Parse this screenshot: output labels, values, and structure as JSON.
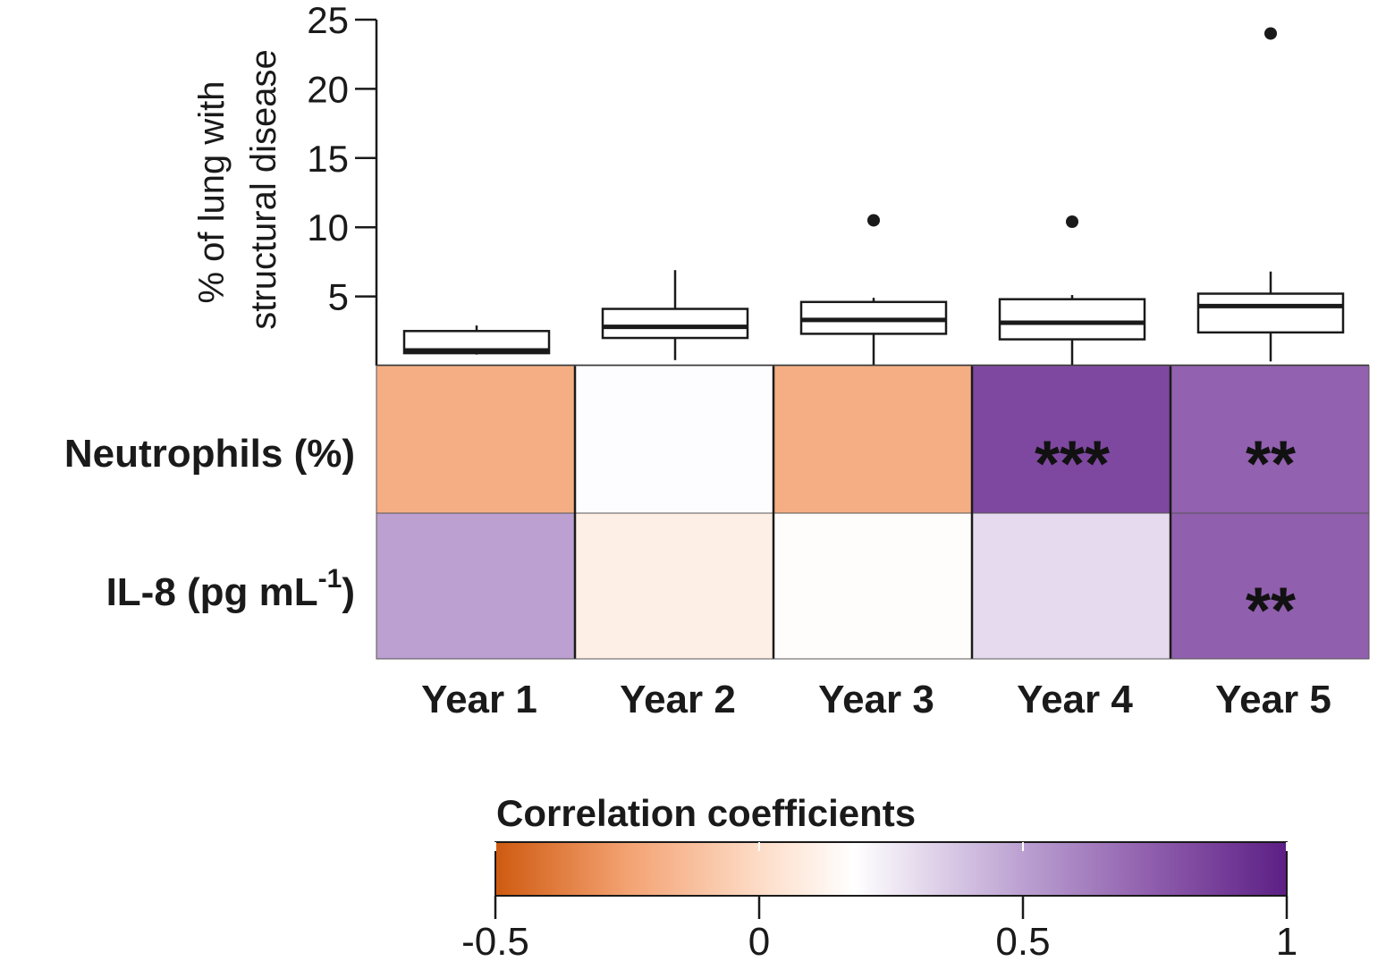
{
  "chart_data": {
    "type": "heatmap",
    "boxplot": {
      "ylabel_line1": "% of lung with",
      "ylabel_line2": "structural disease",
      "ylim": [
        0,
        25
      ],
      "yticks": [
        5,
        10,
        15,
        20,
        25
      ],
      "ytick_labels": [
        "5",
        "10",
        "15",
        "20",
        "25"
      ],
      "boxes": [
        {
          "category": "Year 1",
          "whisker_low": 0.8,
          "q1": 0.9,
          "median": 1.1,
          "q3": 2.5,
          "whisker_high": 2.9,
          "outliers": []
        },
        {
          "category": "Year 2",
          "whisker_low": 0.4,
          "q1": 2.0,
          "median": 2.8,
          "q3": 4.1,
          "whisker_high": 6.9,
          "outliers": []
        },
        {
          "category": "Year 3",
          "whisker_low": 0.0,
          "q1": 2.3,
          "median": 3.3,
          "q3": 4.6,
          "whisker_high": 4.9,
          "outliers": [
            10.5
          ]
        },
        {
          "category": "Year 4",
          "whisker_low": 0.0,
          "q1": 1.9,
          "median": 3.1,
          "q3": 4.8,
          "whisker_high": 5.1,
          "outliers": [
            10.4
          ]
        },
        {
          "category": "Year 5",
          "whisker_low": 0.3,
          "q1": 2.4,
          "median": 4.3,
          "q3": 5.2,
          "whisker_high": 6.8,
          "outliers": [
            24.0
          ]
        }
      ]
    },
    "heatmap": {
      "columns": [
        "Year 1",
        "Year 2",
        "Year 3",
        "Year 4",
        "Year 5"
      ],
      "rows": [
        {
          "label": "Neutrophils (%)",
          "label_sup": "",
          "label_suffix": "",
          "values": [
            -0.2,
            0.19,
            -0.2,
            0.83,
            0.73
          ],
          "significance": [
            "",
            "",
            "",
            "***",
            "**"
          ]
        },
        {
          "label": "IL-8 (pg mL",
          "label_sup": "-1",
          "label_suffix": ")",
          "values": [
            0.5,
            0.1,
            0.17,
            0.3,
            0.74
          ],
          "significance": [
            "",
            "",
            "",
            "",
            "**"
          ]
        }
      ]
    },
    "colorbar": {
      "title": "Correlation coefficients",
      "range": [
        -0.5,
        1
      ],
      "ticks": [
        -0.5,
        0,
        0.5,
        1
      ],
      "tick_labels": [
        "-0.5",
        "0",
        "0.5",
        "1"
      ],
      "stops": [
        {
          "value": -0.5,
          "color": "#cf5a10"
        },
        {
          "value": -0.25,
          "color": "#f3a272"
        },
        {
          "value": 0.0,
          "color": "#fddcc7"
        },
        {
          "value": 0.18,
          "color": "#ffffff"
        },
        {
          "value": 0.5,
          "color": "#bba0d1"
        },
        {
          "value": 0.75,
          "color": "#8e5cac"
        },
        {
          "value": 1.0,
          "color": "#5c1f85"
        }
      ]
    }
  }
}
